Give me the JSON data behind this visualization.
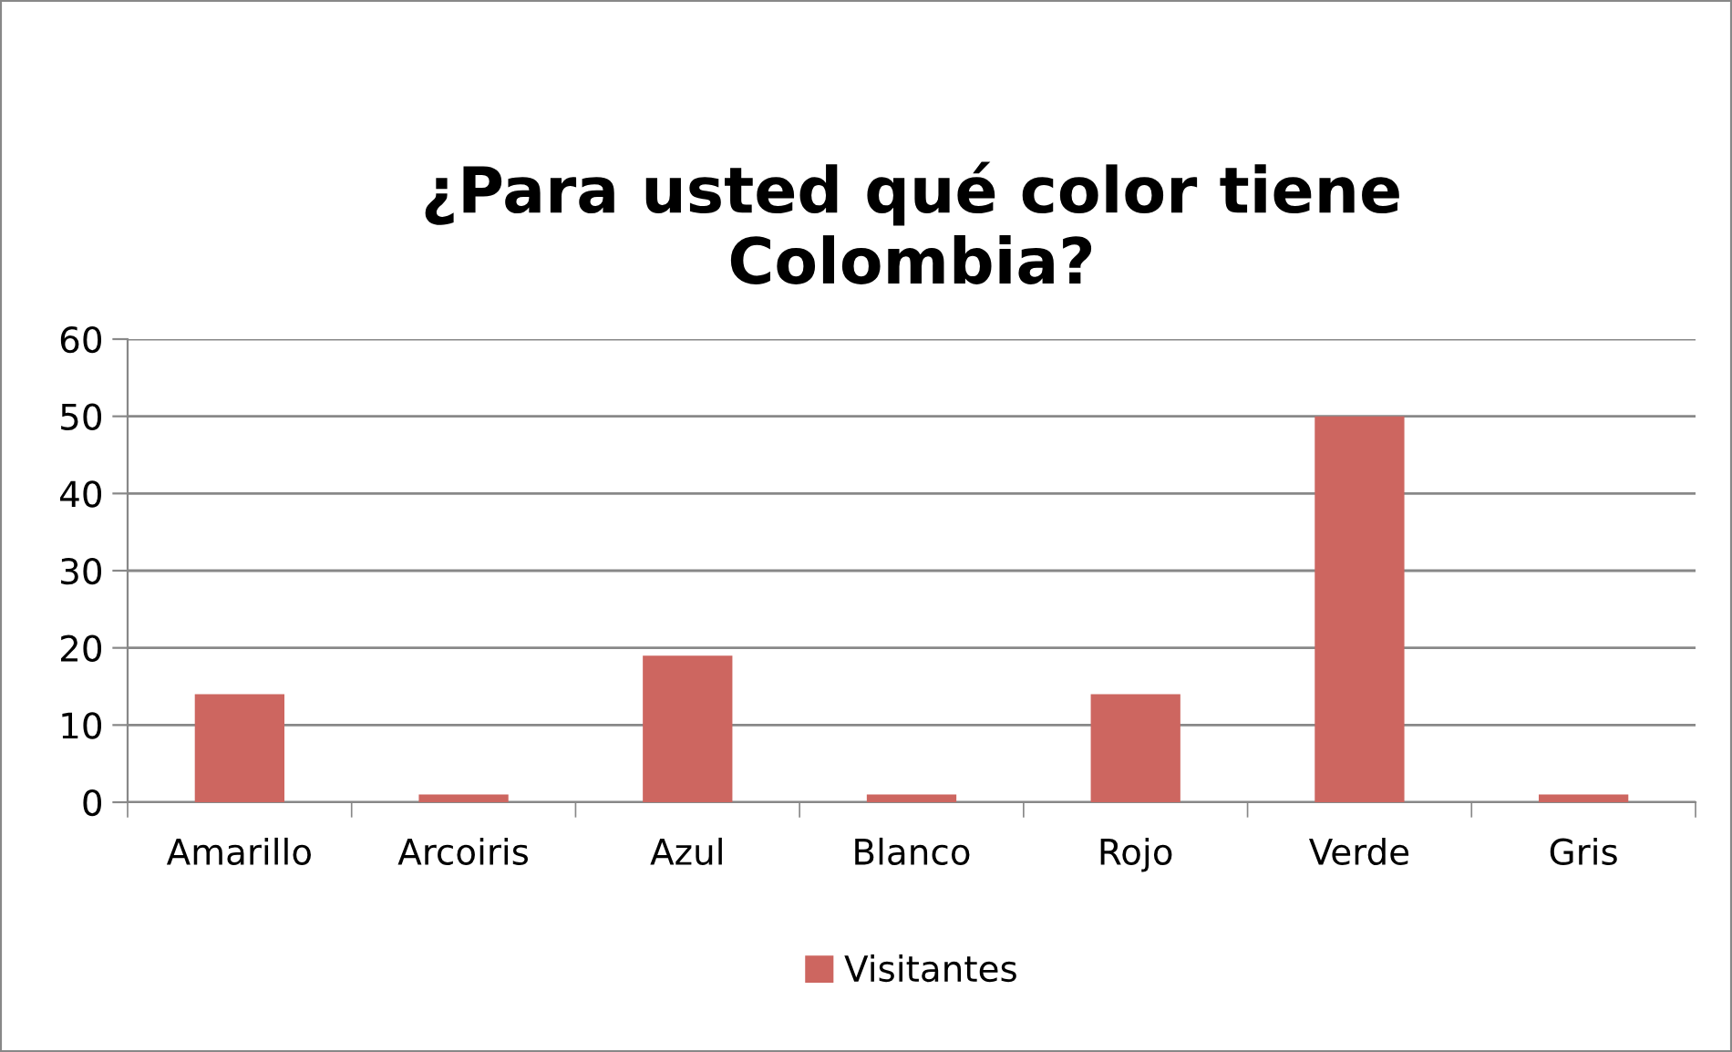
{
  "chart_data": {
    "type": "bar",
    "title": "¿Para usted qué color tiene\nColombia?",
    "categories": [
      "Amarillo",
      "Arcoiris",
      "Azul",
      "Blanco",
      "Rojo",
      "Verde",
      "Gris"
    ],
    "series": [
      {
        "name": "Visitantes",
        "color": "#cd6660",
        "values": [
          14,
          1,
          19,
          1,
          14,
          50,
          1
        ]
      }
    ],
    "ylim": [
      0,
      60
    ],
    "yticks": [
      0,
      10,
      20,
      30,
      40,
      50,
      60
    ],
    "grid": "y",
    "legend": "bottom"
  }
}
